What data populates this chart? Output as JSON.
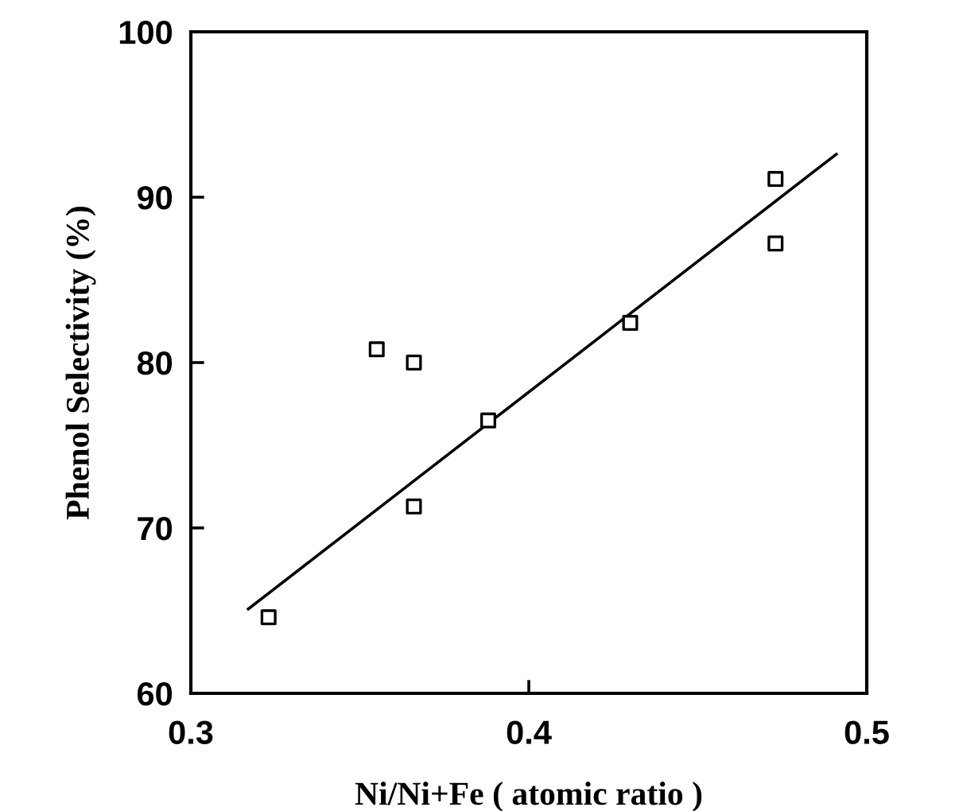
{
  "chart_data": {
    "type": "scatter",
    "xlabel": "Ni/Ni+Fe ( atomic ratio )",
    "ylabel": "Phenol Selectivity (%)",
    "xlim": [
      0.3,
      0.5
    ],
    "xticks": [
      {
        "value": 0.3,
        "label": "0.3"
      },
      {
        "value": 0.4,
        "label": "0.4"
      },
      {
        "value": 0.5,
        "label": "0.5"
      }
    ],
    "ylim": [
      60,
      100
    ],
    "yticks": [
      60,
      70,
      80,
      90,
      100
    ],
    "grid": false,
    "series": [
      {
        "marker": "square",
        "color": "#000000",
        "x": [
          0.323,
          0.355,
          0.366,
          0.366,
          0.388,
          0.43,
          0.473,
          0.473
        ],
        "values": [
          64.6,
          80.8,
          80.0,
          71.3,
          76.5,
          82.4,
          91.1,
          87.2
        ]
      },
      {
        "type": "line",
        "marker": "none",
        "color": "#000000",
        "x": [
          0.317,
          0.491
        ],
        "values": [
          65.1,
          92.6
        ]
      }
    ]
  }
}
